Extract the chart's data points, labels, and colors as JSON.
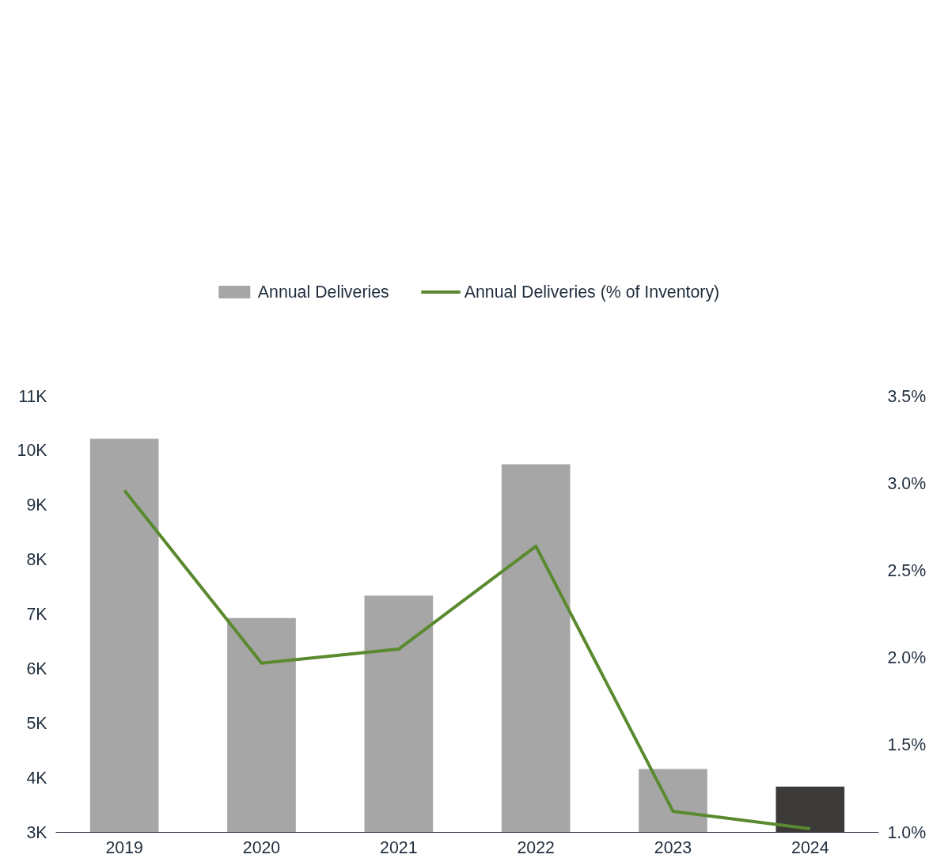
{
  "chart_data": {
    "type": "bar",
    "categories": [
      "2019",
      "2020",
      "2021",
      "2022",
      "2023",
      "2024"
    ],
    "series": [
      {
        "name": "Annual Deliveries",
        "color": "#a6a6a6",
        "colors": [
          "#a6a6a6",
          "#a6a6a6",
          "#a6a6a6",
          "#a6a6a6",
          "#a6a6a6",
          "#3b3a39"
        ],
        "values": [
          10220,
          6930,
          7340,
          9750,
          4160,
          3840
        ]
      },
      {
        "name": "Annual Deliveries (% of Inventory)",
        "type": "line",
        "axis": "y2",
        "color": "#5a8a2f",
        "values": [
          2.96,
          1.97,
          2.05,
          2.64,
          1.12,
          1.02
        ]
      }
    ],
    "ylim": [
      3000,
      11000
    ],
    "yticks": [
      {
        "value": 3000,
        "label": "3K"
      },
      {
        "value": 4000,
        "label": "4K"
      },
      {
        "value": 5000,
        "label": "5K"
      },
      {
        "value": 6000,
        "label": "6K"
      },
      {
        "value": 7000,
        "label": "7K"
      },
      {
        "value": 8000,
        "label": "8K"
      },
      {
        "value": 9000,
        "label": "9K"
      },
      {
        "value": 10000,
        "label": "10K"
      },
      {
        "value": 11000,
        "label": "11K"
      }
    ],
    "y2lim": [
      1.0,
      3.5
    ],
    "y2ticks": [
      {
        "value": 1.0,
        "label": "1.0%"
      },
      {
        "value": 1.5,
        "label": "1.5%"
      },
      {
        "value": 2.0,
        "label": "2.0%"
      },
      {
        "value": 2.5,
        "label": "2.5%"
      },
      {
        "value": 3.0,
        "label": "3.0%"
      },
      {
        "value": 3.5,
        "label": "3.5%"
      }
    ],
    "grid": false,
    "legend": "top",
    "marker": "none",
    "line_style": "solid"
  }
}
